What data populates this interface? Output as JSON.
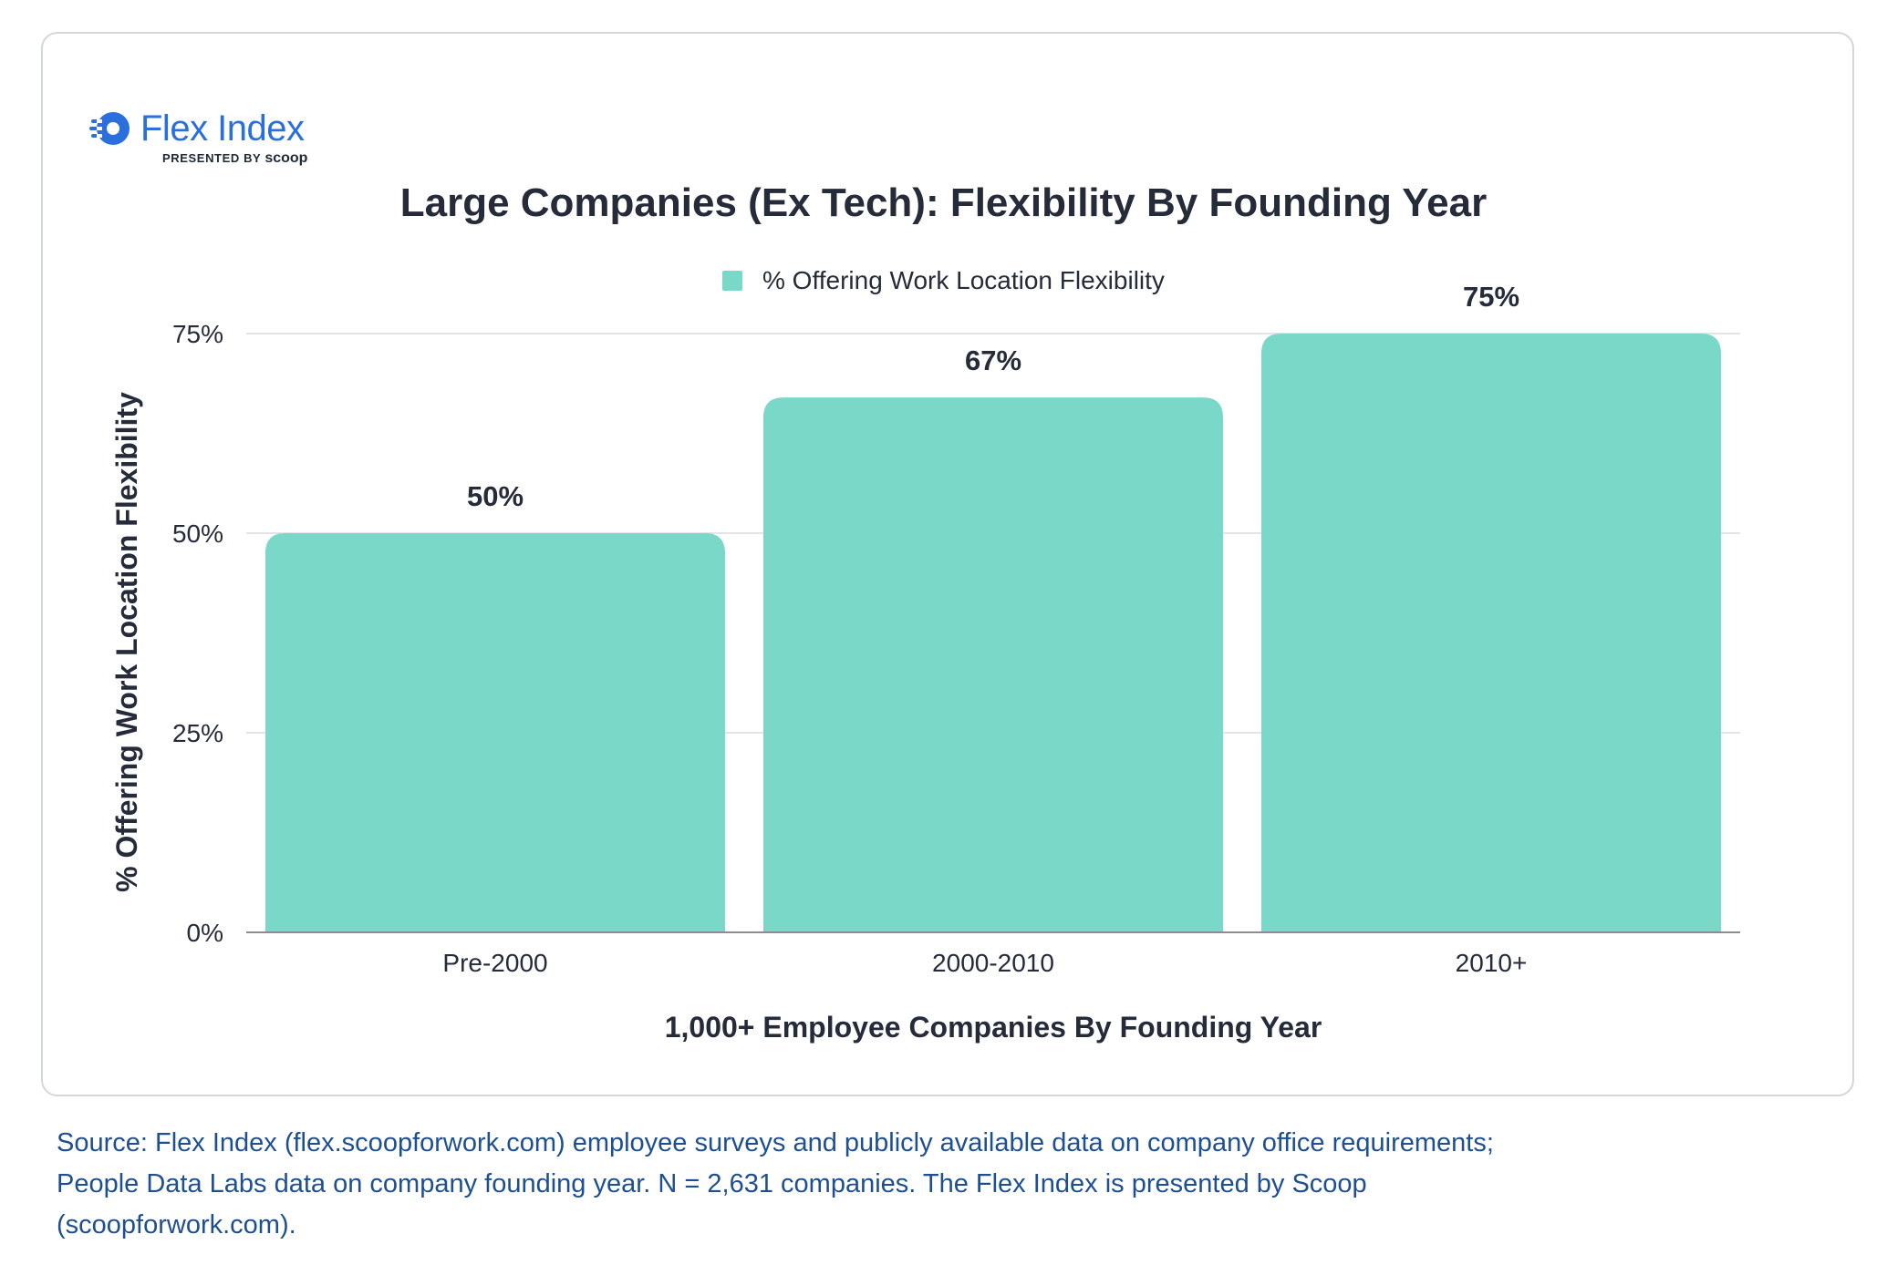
{
  "logo": {
    "name": "Flex Index",
    "presented_by": "PRESENTED BY",
    "brand": "scoop"
  },
  "chart_data": {
    "type": "bar",
    "title": "Large Companies (Ex Tech): Flexibility By Founding Year",
    "xlabel": "1,000+ Employee Companies By Founding Year",
    "ylabel": "% Offering Work Location Flexibility",
    "categories": [
      "Pre-2000",
      "2000-2010",
      "2010+"
    ],
    "series": [
      {
        "name": "% Offering Work Location Flexibility",
        "values": [
          50,
          67,
          75
        ],
        "color": "#7ad8c8"
      }
    ],
    "data_labels": [
      "50%",
      "67%",
      "75%"
    ],
    "ylim": [
      0,
      75
    ],
    "yticks": [
      0,
      25,
      50,
      75
    ],
    "ytick_labels": [
      "0%",
      "25%",
      "50%",
      "75%"
    ],
    "grid": true,
    "legend_position": "top-center"
  },
  "footer": {
    "source_lines": [
      "Source: Flex Index (flex.scoopforwork.com) employee surveys and publicly available data on company office requirements;",
      "People Data Labs data on company founding year. N = 2,631 companies. The Flex Index is presented by Scoop",
      "(scoopforwork.com)."
    ]
  },
  "colors": {
    "bar": "#7ad8c8",
    "logo": "#2a6fdb",
    "source": "#1e4f91",
    "text": "#262b3a",
    "grid": "#d9dbe0"
  }
}
